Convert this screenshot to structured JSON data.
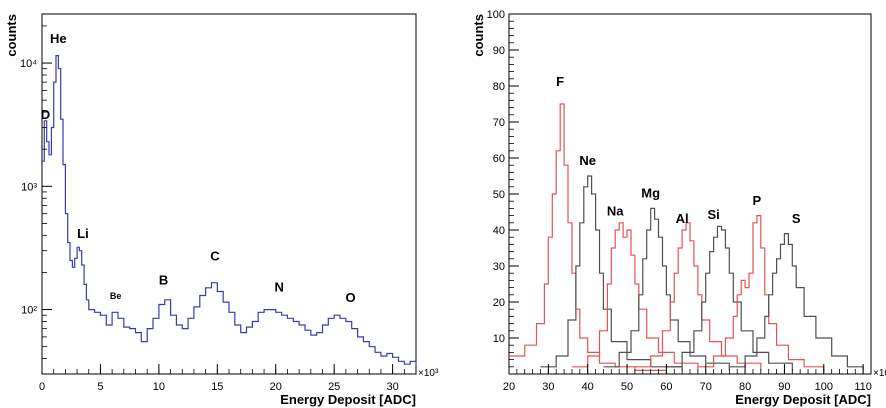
{
  "chart_data": [
    {
      "type": "line",
      "title": "",
      "xlabel": "Energy Deposit [ADC]",
      "ylabel": "counts",
      "x_multiplier_label": "×10³",
      "xlim": [
        0,
        32
      ],
      "ylim": [
        30,
        25000
      ],
      "yscale": "log",
      "x_ticks": [
        0,
        5,
        10,
        15,
        20,
        25,
        30
      ],
      "y_ticks": [
        {
          "value": 100,
          "label": "10²"
        },
        {
          "value": 1000,
          "label": "10³"
        },
        {
          "value": 10000,
          "label": "10⁴"
        }
      ],
      "grid": false,
      "series": [
        {
          "color": "#3b3bb0",
          "x": [
            0,
            0.2,
            0.4,
            0.6,
            0.8,
            1.0,
            1.2,
            1.4,
            1.6,
            1.8,
            2.0,
            2.2,
            2.4,
            2.6,
            2.8,
            3.0,
            3.2,
            3.4,
            3.6,
            3.8,
            4.0,
            4.5,
            5.0,
            5.5,
            6.0,
            6.5,
            7.0,
            7.5,
            8.0,
            8.5,
            9.0,
            9.5,
            10.0,
            10.5,
            11.0,
            11.5,
            12.0,
            12.5,
            13.0,
            13.5,
            14.0,
            14.5,
            15.0,
            15.5,
            16.0,
            16.5,
            17.0,
            17.5,
            18.0,
            18.5,
            19.0,
            19.5,
            20.0,
            20.5,
            21.0,
            21.5,
            22.0,
            22.5,
            23.0,
            23.5,
            24.0,
            24.5,
            25.0,
            25.5,
            26.0,
            26.5,
            27.0,
            27.5,
            28.0,
            28.5,
            29.0,
            29.5,
            30.0,
            30.5,
            31.0,
            31.5,
            32.0
          ],
          "y": [
            1600,
            3400,
            2300,
            1800,
            3000,
            7000,
            11500,
            9000,
            3500,
            1500,
            600,
            350,
            250,
            220,
            260,
            320,
            300,
            230,
            160,
            120,
            100,
            95,
            90,
            75,
            95,
            85,
            72,
            70,
            65,
            55,
            70,
            85,
            110,
            120,
            90,
            75,
            70,
            85,
            105,
            130,
            150,
            165,
            140,
            115,
            95,
            75,
            65,
            72,
            80,
            95,
            100,
            100,
            95,
            90,
            85,
            80,
            75,
            68,
            62,
            65,
            75,
            85,
            90,
            85,
            80,
            70,
            60,
            55,
            50,
            45,
            42,
            44,
            41,
            38,
            36,
            38,
            35
          ]
        }
      ],
      "annotations": [
        {
          "text": "D",
          "x": 0.3,
          "y": 3500
        },
        {
          "text": "He",
          "x": 1.4,
          "y": 14500
        },
        {
          "text": "Li",
          "x": 3.5,
          "y": 380
        },
        {
          "text": "Be",
          "x": 6.3,
          "y": 122
        },
        {
          "text": "B",
          "x": 10.4,
          "y": 160
        },
        {
          "text": "C",
          "x": 14.8,
          "y": 250
        },
        {
          "text": "N",
          "x": 20.3,
          "y": 140
        },
        {
          "text": "O",
          "x": 26.4,
          "y": 115
        }
      ]
    },
    {
      "type": "line",
      "title": "",
      "xlabel": "Energy Deposit [ADC]",
      "ylabel": "counts",
      "x_multiplier_label": "×10",
      "xlim": [
        20,
        112
      ],
      "ylim": [
        0,
        100
      ],
      "x_ticks": [
        20,
        30,
        40,
        50,
        60,
        70,
        80,
        90,
        100,
        110
      ],
      "y_ticks": [
        10,
        20,
        30,
        40,
        50,
        60,
        70,
        80,
        90,
        100
      ],
      "grid": false,
      "series": [
        {
          "color": "#e05555",
          "x": [
            20,
            24,
            27,
            29,
            30,
            31,
            32,
            33,
            34,
            35,
            36,
            37,
            38,
            40,
            43,
            47,
            52,
            60
          ],
          "y": [
            5,
            8,
            14,
            25,
            38,
            50,
            62,
            75,
            58,
            42,
            28,
            18,
            10,
            6,
            3,
            2,
            1,
            0
          ]
        },
        {
          "color": "#505050",
          "x": [
            28,
            32,
            35,
            37,
            38,
            39,
            40,
            41,
            42,
            43,
            44,
            46,
            50,
            56,
            64
          ],
          "y": [
            2,
            5,
            15,
            30,
            42,
            52,
            55,
            50,
            40,
            28,
            18,
            9,
            4,
            2,
            1
          ]
        },
        {
          "color": "#e05555",
          "x": [
            36,
            40,
            43,
            45,
            46,
            47,
            48,
            49,
            50,
            51,
            52,
            53,
            55,
            58,
            62,
            68
          ],
          "y": [
            2,
            5,
            12,
            25,
            35,
            40,
            42,
            38,
            40,
            33,
            25,
            18,
            10,
            6,
            3,
            1
          ]
        },
        {
          "color": "#505050",
          "x": [
            44,
            48,
            51,
            53,
            54,
            55,
            56,
            57,
            58,
            59,
            60,
            61,
            63,
            66,
            70,
            76
          ],
          "y": [
            2,
            6,
            12,
            22,
            32,
            40,
            46,
            43,
            38,
            30,
            22,
            15,
            9,
            5,
            3,
            1
          ]
        },
        {
          "color": "#e05555",
          "x": [
            52,
            56,
            59,
            61,
            62,
            63,
            64,
            65,
            66,
            67,
            68,
            69,
            71,
            74,
            78,
            84
          ],
          "y": [
            2,
            5,
            12,
            20,
            28,
            35,
            40,
            42,
            37,
            30,
            22,
            15,
            9,
            5,
            3,
            1
          ]
        },
        {
          "color": "#505050",
          "x": [
            60,
            64,
            67,
            69,
            70,
            71,
            72,
            73,
            74,
            75,
            76,
            77,
            79,
            82,
            86,
            92
          ],
          "y": [
            2,
            6,
            12,
            20,
            28,
            34,
            38,
            41,
            40,
            35,
            28,
            20,
            12,
            6,
            3,
            1
          ]
        },
        {
          "color": "#e05555",
          "x": [
            68,
            72,
            75,
            77,
            78,
            79,
            80,
            81,
            82,
            83,
            84,
            85,
            86,
            88,
            91,
            95,
            100
          ],
          "y": [
            2,
            5,
            10,
            16,
            22,
            26,
            24,
            28,
            42,
            44,
            35,
            22,
            14,
            8,
            4,
            2,
            1
          ]
        },
        {
          "color": "#505050",
          "x": [
            76,
            80,
            83,
            85,
            86,
            87,
            88,
            89,
            90,
            91,
            92,
            93,
            95,
            98,
            102,
            106,
            110
          ],
          "y": [
            2,
            5,
            10,
            16,
            22,
            28,
            32,
            36,
            39,
            36,
            30,
            24,
            16,
            10,
            5,
            2,
            1
          ]
        }
      ],
      "annotations": [
        {
          "text": "F",
          "x": 33,
          "y": 80
        },
        {
          "text": "Ne",
          "x": 40,
          "y": 58
        },
        {
          "text": "Na",
          "x": 47,
          "y": 44
        },
        {
          "text": "Mg",
          "x": 56,
          "y": 49
        },
        {
          "text": "Al",
          "x": 64,
          "y": 42
        },
        {
          "text": "Si",
          "x": 72,
          "y": 43
        },
        {
          "text": "P",
          "x": 83,
          "y": 47
        },
        {
          "text": "S",
          "x": 93,
          "y": 42
        }
      ]
    }
  ]
}
